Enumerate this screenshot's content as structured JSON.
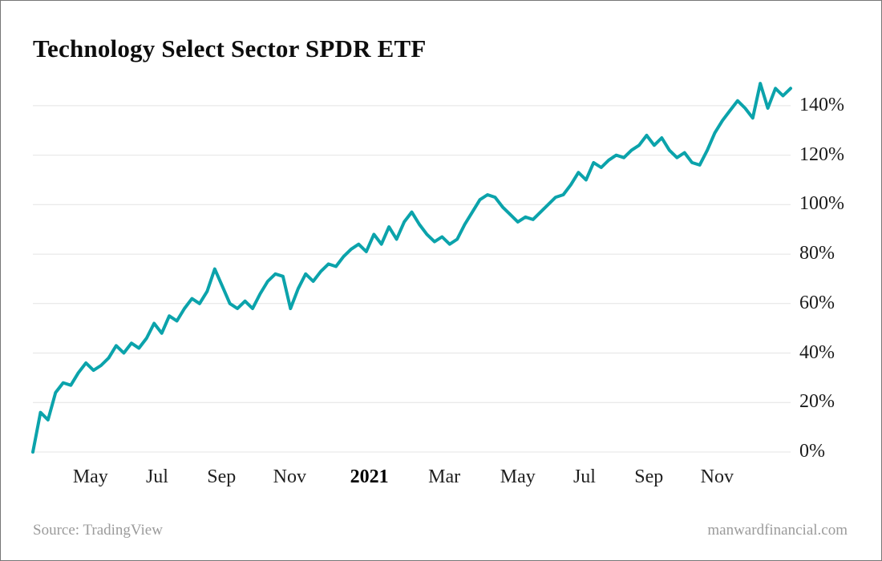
{
  "page": {
    "title": "Technology Select Sector SPDR ETF"
  },
  "footer": {
    "source": "Source: TradingView",
    "site": "manwardfinancial.com"
  },
  "chart_data": {
    "type": "line",
    "title": "Technology Select Sector SPDR ETF",
    "unit": "%",
    "grid": "horizontal",
    "legend": "none",
    "ylim": [
      0,
      150
    ],
    "y_ticks": [
      {
        "value": 0,
        "label": "0%"
      },
      {
        "value": 20,
        "label": "20%"
      },
      {
        "value": 40,
        "label": "40%"
      },
      {
        "value": 60,
        "label": "60%"
      },
      {
        "value": 80,
        "label": "80%"
      },
      {
        "value": 100,
        "label": "100%"
      },
      {
        "value": 120,
        "label": "120%"
      },
      {
        "value": 140,
        "label": "140%"
      }
    ],
    "x_ticks": [
      {
        "label": "May",
        "pos": 0.076,
        "bold": false
      },
      {
        "label": "Jul",
        "pos": 0.164,
        "bold": false
      },
      {
        "label": "Sep",
        "pos": 0.249,
        "bold": false
      },
      {
        "label": "Nov",
        "pos": 0.339,
        "bold": false
      },
      {
        "label": "2021",
        "pos": 0.444,
        "bold": true
      },
      {
        "label": "Mar",
        "pos": 0.543,
        "bold": false
      },
      {
        "label": "May",
        "pos": 0.64,
        "bold": false
      },
      {
        "label": "Jul",
        "pos": 0.728,
        "bold": false
      },
      {
        "label": "Sep",
        "pos": 0.813,
        "bold": false
      },
      {
        "label": "Nov",
        "pos": 0.903,
        "bold": false
      }
    ],
    "values": [
      0,
      16,
      13,
      24,
      28,
      27,
      32,
      36,
      33,
      35,
      38,
      43,
      40,
      44,
      42,
      46,
      52,
      48,
      55,
      53,
      58,
      62,
      60,
      65,
      74,
      67,
      60,
      58,
      61,
      58,
      64,
      69,
      72,
      71,
      58,
      66,
      72,
      69,
      73,
      76,
      75,
      79,
      82,
      84,
      81,
      88,
      84,
      91,
      86,
      93,
      97,
      92,
      88,
      85,
      87,
      84,
      86,
      92,
      97,
      102,
      104,
      103,
      99,
      96,
      93,
      95,
      94,
      97,
      100,
      103,
      104,
      108,
      113,
      110,
      117,
      115,
      118,
      120,
      119,
      122,
      124,
      128,
      124,
      127,
      122,
      119,
      121,
      117,
      116,
      122,
      129,
      134,
      138,
      142,
      139,
      135,
      149,
      139,
      147,
      144,
      147
    ],
    "colors": {
      "line": "#0ba3ab",
      "grid": "#e4e4e4",
      "axis_text": "#1a1a1a",
      "muted_text": "#9b9b9b"
    }
  }
}
